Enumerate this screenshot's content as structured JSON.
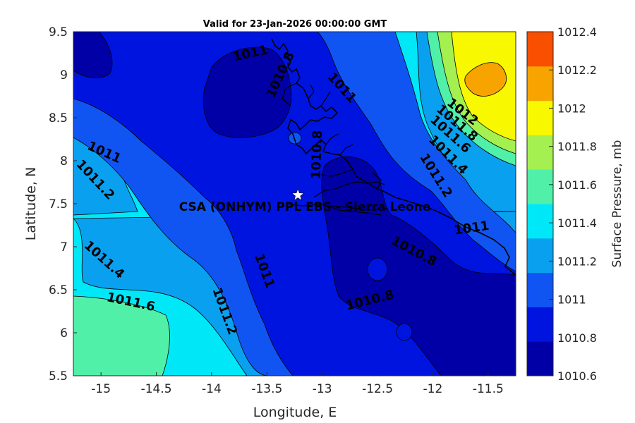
{
  "title": "Valid for 23-Jan-2026 00:00:00 GMT",
  "site_label": "CSA (ONHYM) PPL EBS  - Sierra Leone",
  "colorbar": {
    "label": "Surface Pressure, mb",
    "ticks": [
      "1012.4",
      "1012.2",
      "1012",
      "1011.8",
      "1011.6",
      "1011.4",
      "1011.2",
      "1011",
      "1010.8",
      "1010.6"
    ]
  },
  "chart_data": {
    "type": "heatmap",
    "xlabel": "Longitude, E",
    "ylabel": "Latitude, N",
    "xlim": [
      -15.25,
      -11.25
    ],
    "ylim": [
      5.5,
      9.5
    ],
    "xticks": [
      "-15",
      "-14.5",
      "-14",
      "-13.5",
      "-13",
      "-12.5",
      "-12",
      "-11.5"
    ],
    "yticks": [
      "5.5",
      "6",
      "6.5",
      "7",
      "7.5",
      "8",
      "8.5",
      "9",
      "9.5"
    ],
    "levels": [
      1010.6,
      1010.8,
      1011.0,
      1011.2,
      1011.4,
      1011.6,
      1011.8,
      1012.0,
      1012.2,
      1012.4
    ],
    "level_colors": [
      "#0000a6",
      "#0014e0",
      "#1055f2",
      "#0aa0f0",
      "#00e8f8",
      "#50f0a8",
      "#a4f050",
      "#f8f800",
      "#f8a400",
      "#f85000"
    ],
    "marker": {
      "symbol": "star",
      "lon": -13.22,
      "lat": 7.6
    },
    "contour_labels": [
      {
        "text": "1011",
        "lon": -13.65,
        "lat": 9.25,
        "angle": -12
      },
      {
        "text": "1010.8",
        "lon": -13.38,
        "lat": 9.0,
        "angle": -65
      },
      {
        "text": "1011",
        "lon": -12.82,
        "lat": 8.85,
        "angle": 48
      },
      {
        "text": "1012",
        "lon": -11.73,
        "lat": 8.57,
        "angle": 38
      },
      {
        "text": "1011.8",
        "lon": -11.78,
        "lat": 8.44,
        "angle": 40
      },
      {
        "text": "1011.6",
        "lon": -11.84,
        "lat": 8.31,
        "angle": 42
      },
      {
        "text": "1011.4",
        "lon": -11.86,
        "lat": 8.07,
        "angle": 45
      },
      {
        "text": "1011.2",
        "lon": -11.97,
        "lat": 7.83,
        "angle": 58
      },
      {
        "text": "1011",
        "lon": -14.97,
        "lat": 8.1,
        "angle": 24
      },
      {
        "text": "1011.2",
        "lon": -15.05,
        "lat": 7.78,
        "angle": 47
      },
      {
        "text": "1010.8",
        "lon": -13.05,
        "lat": 8.07,
        "angle": -88
      },
      {
        "text": "1011",
        "lon": -11.65,
        "lat": 7.22,
        "angle": -8
      },
      {
        "text": "1010.8",
        "lon": -12.17,
        "lat": 6.95,
        "angle": 28
      },
      {
        "text": "1011.4",
        "lon": -14.97,
        "lat": 6.85,
        "angle": 42
      },
      {
        "text": "1011",
        "lon": -13.52,
        "lat": 6.72,
        "angle": 70
      },
      {
        "text": "1011.2",
        "lon": -13.88,
        "lat": 6.25,
        "angle": 70
      },
      {
        "text": "1011.6",
        "lon": -14.73,
        "lat": 6.36,
        "angle": 12
      },
      {
        "text": "1010.8",
        "lon": -12.57,
        "lat": 6.38,
        "angle": -14
      }
    ]
  }
}
